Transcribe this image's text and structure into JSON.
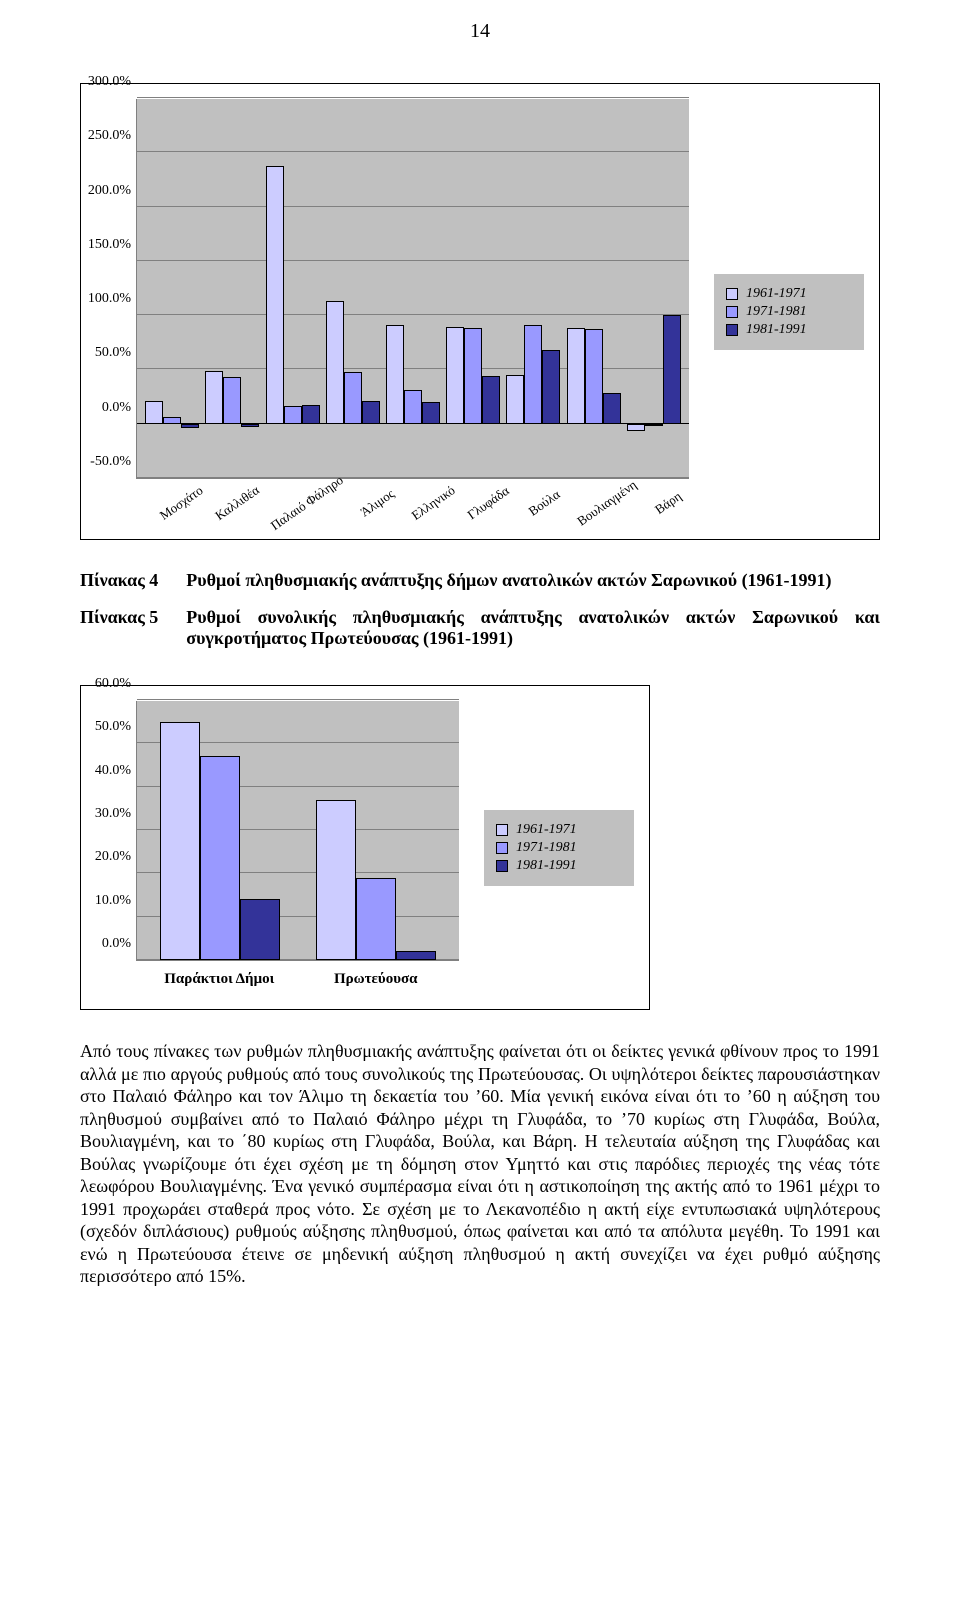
{
  "page_number": "14",
  "legend": {
    "items": [
      {
        "label": "1961-1971",
        "color": "#ccccff"
      },
      {
        "label": "1971-1981",
        "color": "#9999ff"
      },
      {
        "label": "1981-1991",
        "color": "#333399"
      }
    ],
    "bg": "#c0c0c0"
  },
  "chart1": {
    "type": "bar",
    "background_color": "#c0c0c0",
    "ymin": -50,
    "ymax": 300,
    "ytick_step": 50,
    "yticks": [
      "-50.0%",
      "0.0%",
      "50.0%",
      "100.0%",
      "150.0%",
      "200.0%",
      "250.0%",
      "300.0%"
    ],
    "categories": [
      "Μοσχάτο",
      "Καλλιθέα",
      "Παλαιό Φάληρο",
      "Άλιμος",
      "Ελληνικό",
      "Γλυφάδα",
      "Βούλα",
      "Βουλιαγμένη",
      "Βάρη"
    ],
    "series": [
      {
        "key": "s0",
        "color": "#ccccff",
        "values": [
          21,
          49,
          237,
          113,
          91,
          89,
          45,
          88,
          -7
        ]
      },
      {
        "key": "s1",
        "color": "#9999ff",
        "values": [
          6,
          43,
          16,
          48,
          31,
          88,
          91,
          87,
          -2
        ]
      },
      {
        "key": "s2",
        "color": "#333399",
        "values": [
          -4,
          -3,
          17,
          21,
          20,
          44,
          68,
          28,
          100
        ]
      }
    ]
  },
  "captions": {
    "row1_label": "Πίνακας 4",
    "row1_text": "Ρυθμοί πληθυσμιακής ανάπτυξης δήμων ανατολικών ακτών Σαρωνικού (1961-1991)",
    "row2_label": "Πίνακας 5",
    "row2_text": "Ρυθμοί συνολικής πληθυσμιακής ανάπτυξης ανατολικών ακτών Σαρωνικού και συγκροτήματος Πρωτεύουσας (1961-1991)"
  },
  "chart2": {
    "type": "bar",
    "background_color": "#c0c0c0",
    "ymin": 0,
    "ymax": 60,
    "ytick_step": 10,
    "yticks": [
      "0.0%",
      "10.0%",
      "20.0%",
      "30.0%",
      "40.0%",
      "50.0%",
      "60.0%"
    ],
    "categories": [
      "Παράκτιοι Δήμοι",
      "Πρωτεύουσα"
    ],
    "series": [
      {
        "key": "s0",
        "color": "#ccccff",
        "values": [
          55,
          37
        ]
      },
      {
        "key": "s1",
        "color": "#9999ff",
        "values": [
          47,
          19
        ]
      },
      {
        "key": "s2",
        "color": "#333399",
        "values": [
          14,
          2
        ]
      }
    ]
  },
  "body_text": "Από τους πίνακες των ρυθμών πληθυσμιακής ανάπτυξης φαίνεται ότι οι δείκτες γενικά φθίνουν προς το 1991 αλλά με πιο αργούς ρυθμούς από τους συνολικούς της Πρωτεύουσας. Οι υψηλότεροι δείκτες παρουσιάστηκαν στο Παλαιό Φάληρο και τον Άλιμο τη δεκαετία του ’60. Μία γενική εικόνα είναι ότι το ’60 η αύξηση του πληθυσμού συμβαίνει από το Παλαιό Φάληρο μέχρι τη Γλυφάδα, το ’70 κυρίως στη Γλυφάδα, Βούλα, Βουλιαγμένη, και το ΄80 κυρίως στη Γλυφάδα, Βούλα, και Βάρη. Η τελευταία αύξηση της Γλυφάδας και Βούλας γνωρίζουμε ότι έχει σχέση με τη δόμηση στον Υμηττό και στις παρόδιες περιοχές της νέας τότε λεωφόρου Βουλιαγμένης. Ένα γενικό συμπέρασμα είναι ότι η αστικοποίηση της ακτής από το 1961 μέχρι το 1991 προχωράει σταθερά προς νότο. Σε σχέση με το Λεκανοπέδιο η ακτή είχε εντυπωσιακά υψηλότερους (σχεδόν διπλάσιους) ρυθμούς αύξησης πληθυσμού, όπως φαίνεται και από τα απόλυτα μεγέθη. Το 1991 και ενώ η Πρωτεύουσα έτεινε σε μηδενική αύξηση πληθυσμού η ακτή συνεχίζει να έχει ρυθμό αύξησης περισσότερο από 15%."
}
